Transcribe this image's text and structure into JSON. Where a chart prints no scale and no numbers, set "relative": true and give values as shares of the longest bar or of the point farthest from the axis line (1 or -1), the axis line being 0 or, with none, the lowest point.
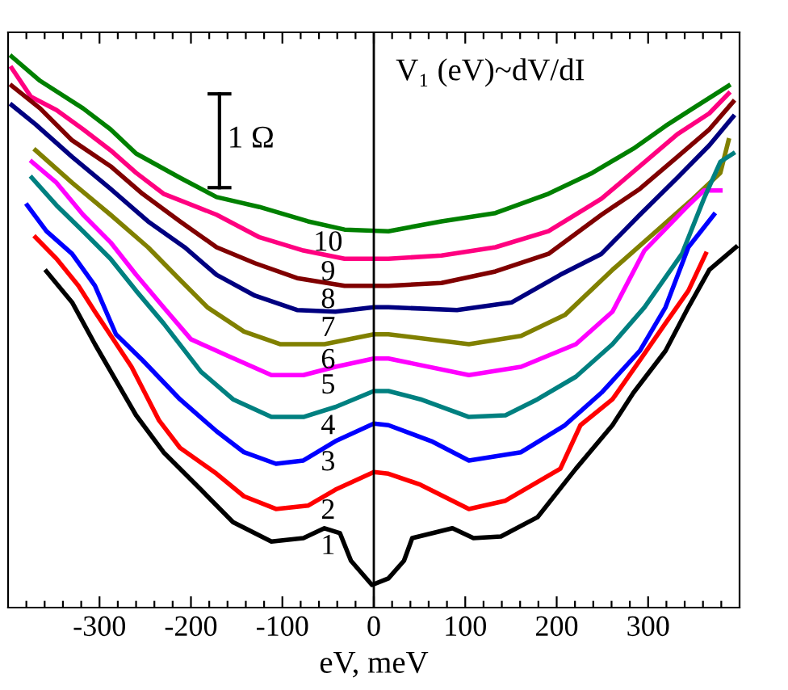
{
  "chart_data": {
    "type": "line",
    "relative": true,
    "xlabel": "eV, meV",
    "xlim": [
      -400,
      400
    ],
    "xticks": [
      {
        "value": -380,
        "label": null
      },
      {
        "value": -360,
        "label": null
      },
      {
        "value": -340,
        "label": null
      },
      {
        "value": -320,
        "label": null
      },
      -300,
      {
        "value": -280,
        "label": null
      },
      {
        "value": -260,
        "label": null
      },
      {
        "value": -240,
        "label": null
      },
      {
        "value": -220,
        "label": null
      },
      -200,
      {
        "value": -180,
        "label": null
      },
      {
        "value": -160,
        "label": null
      },
      {
        "value": -140,
        "label": null
      },
      {
        "value": -120,
        "label": null
      },
      -100,
      {
        "value": -80,
        "label": null
      },
      {
        "value": -60,
        "label": null
      },
      {
        "value": -40,
        "label": null
      },
      {
        "value": -20,
        "label": null
      },
      0,
      {
        "value": 20,
        "label": null
      },
      {
        "value": 40,
        "label": null
      },
      {
        "value": 60,
        "label": null
      },
      {
        "value": 80,
        "label": null
      },
      100,
      {
        "value": 120,
        "label": null
      },
      {
        "value": 140,
        "label": null
      },
      {
        "value": 160,
        "label": null
      },
      {
        "value": 180,
        "label": null
      },
      200,
      {
        "value": 220,
        "label": null
      },
      {
        "value": 240,
        "label": null
      },
      {
        "value": 260,
        "label": null
      },
      {
        "value": 280,
        "label": null
      },
      300,
      {
        "value": 320,
        "label": null
      },
      {
        "value": 340,
        "label": null
      },
      {
        "value": 360,
        "label": null
      },
      {
        "value": 380,
        "label": null
      }
    ],
    "grid": false,
    "legend": false,
    "marker": "none",
    "line_style": "solid",
    "ref_lines": [
      {
        "axis": "x",
        "value": 0,
        "color": "#000000"
      }
    ],
    "annotations": [
      "V₁ (eV)~dV/dI",
      "1 Ω"
    ],
    "series": [
      {
        "name": "10",
        "color": "#008000",
        "x": [
          -396,
          -365,
          -318,
          -288,
          -260,
          -212,
          -172,
          -125,
          -72,
          -32,
          16,
          74,
          133,
          191,
          239,
          284,
          319,
          349,
          388
        ],
        "values": [
          1.0,
          0.956,
          0.906,
          0.868,
          0.824,
          0.78,
          0.745,
          0.727,
          0.701,
          0.686,
          0.683,
          0.701,
          0.716,
          0.751,
          0.789,
          0.833,
          0.874,
          0.906,
          0.947
        ]
      },
      {
        "name": "9",
        "color": "#ff0080",
        "x": [
          -396,
          -375,
          -347,
          -318,
          -288,
          -260,
          -230,
          -172,
          -125,
          -77,
          -32,
          16,
          74,
          133,
          191,
          249,
          291,
          332,
          367,
          388
        ],
        "values": [
          0.979,
          0.927,
          0.903,
          0.868,
          0.83,
          0.789,
          0.751,
          0.713,
          0.672,
          0.648,
          0.633,
          0.633,
          0.639,
          0.654,
          0.683,
          0.742,
          0.801,
          0.859,
          0.897,
          0.933
        ]
      },
      {
        "name": "8",
        "color": "#800000",
        "x": [
          -396,
          -365,
          -330,
          -288,
          -253,
          -212,
          -172,
          -130,
          -84,
          -32,
          16,
          74,
          133,
          191,
          249,
          291,
          332,
          367,
          393
        ],
        "values": [
          0.947,
          0.906,
          0.848,
          0.801,
          0.751,
          0.701,
          0.654,
          0.625,
          0.598,
          0.584,
          0.584,
          0.589,
          0.61,
          0.642,
          0.713,
          0.76,
          0.818,
          0.868,
          0.918
        ]
      },
      {
        "name": "7",
        "color": "#000080",
        "x": [
          -396,
          -370,
          -330,
          -288,
          -247,
          -207,
          -172,
          -130,
          -84,
          -42,
          0,
          16,
          91,
          151,
          204,
          249,
          291,
          332,
          367,
          393
        ],
        "values": [
          0.912,
          0.877,
          0.818,
          0.76,
          0.701,
          0.654,
          0.604,
          0.566,
          0.54,
          0.537,
          0.545,
          0.545,
          0.54,
          0.554,
          0.604,
          0.642,
          0.713,
          0.78,
          0.839,
          0.891
        ]
      },
      {
        "name": "6",
        "color": "#808000",
        "x": [
          -370,
          -330,
          -288,
          -247,
          -212,
          -182,
          -142,
          -102,
          -54,
          0,
          16,
          104,
          161,
          209,
          261,
          309,
          349,
          379,
          388
        ],
        "values": [
          0.83,
          0.771,
          0.713,
          0.654,
          0.595,
          0.545,
          0.501,
          0.478,
          0.478,
          0.496,
          0.496,
          0.478,
          0.493,
          0.531,
          0.613,
          0.683,
          0.742,
          0.789,
          0.848
        ]
      },
      {
        "name": "5",
        "color": "#ff00ff",
        "x": [
          -374,
          -347,
          -318,
          -288,
          -260,
          -230,
          -200,
          -160,
          -112,
          -77,
          -42,
          0,
          16,
          104,
          161,
          221,
          261,
          296,
          344,
          361,
          379
        ],
        "values": [
          0.809,
          0.771,
          0.713,
          0.663,
          0.604,
          0.545,
          0.487,
          0.457,
          0.422,
          0.422,
          0.437,
          0.452,
          0.452,
          0.422,
          0.437,
          0.478,
          0.537,
          0.648,
          0.73,
          0.757,
          0.757
        ]
      },
      {
        "name": "4",
        "color": "#008080",
        "x": [
          -374,
          -347,
          -318,
          -288,
          -260,
          -230,
          -189,
          -154,
          -112,
          -77,
          -42,
          0,
          16,
          51,
          104,
          144,
          179,
          221,
          261,
          296,
          337,
          361,
          379,
          393
        ],
        "values": [
          0.78,
          0.73,
          0.683,
          0.633,
          0.575,
          0.516,
          0.428,
          0.378,
          0.346,
          0.346,
          0.364,
          0.393,
          0.393,
          0.378,
          0.346,
          0.349,
          0.378,
          0.419,
          0.478,
          0.545,
          0.642,
          0.742,
          0.809,
          0.824
        ]
      },
      {
        "name": "3",
        "color": "#0000ff",
        "x": [
          -379,
          -358,
          -330,
          -305,
          -282,
          -253,
          -212,
          -172,
          -142,
          -107,
          -77,
          -42,
          0,
          16,
          63,
          104,
          161,
          209,
          249,
          291,
          319,
          344,
          372
        ],
        "values": [
          0.73,
          0.683,
          0.642,
          0.584,
          0.496,
          0.449,
          0.378,
          0.32,
          0.282,
          0.261,
          0.267,
          0.302,
          0.334,
          0.331,
          0.302,
          0.267,
          0.282,
          0.331,
          0.39,
          0.466,
          0.545,
          0.654,
          0.713
        ]
      },
      {
        "name": "2",
        "color": "#ff0000",
        "x": [
          -370,
          -347,
          -323,
          -305,
          -265,
          -235,
          -212,
          -172,
          -142,
          -107,
          -72,
          -42,
          0,
          16,
          51,
          104,
          144,
          204,
          226,
          261,
          291,
          319,
          344,
          363
        ],
        "values": [
          0.672,
          0.633,
          0.584,
          0.537,
          0.437,
          0.34,
          0.29,
          0.243,
          0.202,
          0.179,
          0.185,
          0.214,
          0.246,
          0.243,
          0.223,
          0.179,
          0.194,
          0.252,
          0.331,
          0.378,
          0.449,
          0.516,
          0.575,
          0.642
        ]
      },
      {
        "name": "1",
        "color": "#000000",
        "x": [
          -358,
          -330,
          -305,
          -260,
          -230,
          -189,
          -154,
          -112,
          -77,
          -54,
          -37,
          -25,
          -2,
          16,
          33,
          42,
          86,
          109,
          139,
          179,
          221,
          261,
          284,
          319,
          344,
          367,
          396
        ],
        "values": [
          0.61,
          0.554,
          0.478,
          0.349,
          0.282,
          0.214,
          0.155,
          0.12,
          0.126,
          0.144,
          0.135,
          0.085,
          0.041,
          0.053,
          0.085,
          0.126,
          0.144,
          0.126,
          0.129,
          0.164,
          0.252,
          0.331,
          0.39,
          0.466,
          0.545,
          0.613,
          0.654
        ]
      }
    ]
  }
}
